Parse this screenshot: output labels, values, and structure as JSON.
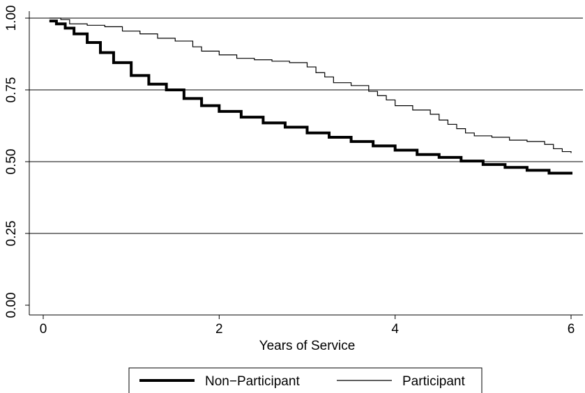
{
  "chart_data": {
    "type": "line",
    "title": "",
    "xlabel": "Years of Service",
    "ylabel": "",
    "xlim": [
      0,
      6
    ],
    "ylim": [
      0,
      1
    ],
    "x_ticks": [
      0,
      2,
      4,
      6
    ],
    "x_tick_labels": [
      "0",
      "2",
      "4",
      "6"
    ],
    "y_ticks": [
      0,
      0.25,
      0.5,
      0.75,
      1.0
    ],
    "y_tick_labels": [
      "0.00",
      "0.25",
      "0.50",
      "0.75",
      "1.00"
    ],
    "grid": "horizontal",
    "legend_position": "bottom",
    "line_style": "step",
    "series": [
      {
        "name": "Non−Participant",
        "style": "thick",
        "color": "#000000",
        "points": [
          [
            0.07,
            0.99
          ],
          [
            0.15,
            0.98
          ],
          [
            0.25,
            0.965
          ],
          [
            0.35,
            0.945
          ],
          [
            0.5,
            0.915
          ],
          [
            0.65,
            0.88
          ],
          [
            0.8,
            0.845
          ],
          [
            1.0,
            0.8
          ],
          [
            1.2,
            0.77
          ],
          [
            1.4,
            0.75
          ],
          [
            1.6,
            0.72
          ],
          [
            1.8,
            0.695
          ],
          [
            2.0,
            0.675
          ],
          [
            2.25,
            0.655
          ],
          [
            2.5,
            0.635
          ],
          [
            2.75,
            0.62
          ],
          [
            3.0,
            0.6
          ],
          [
            3.25,
            0.585
          ],
          [
            3.5,
            0.57
          ],
          [
            3.75,
            0.555
          ],
          [
            4.0,
            0.54
          ],
          [
            4.25,
            0.525
          ],
          [
            4.5,
            0.515
          ],
          [
            4.75,
            0.502
          ],
          [
            5.0,
            0.49
          ],
          [
            5.25,
            0.48
          ],
          [
            5.5,
            0.47
          ],
          [
            5.75,
            0.46
          ],
          [
            6.0,
            0.455
          ]
        ]
      },
      {
        "name": "Participant",
        "style": "thin",
        "color": "#000000",
        "points": [
          [
            0.07,
            1.0
          ],
          [
            0.2,
            0.995
          ],
          [
            0.3,
            0.98
          ],
          [
            0.5,
            0.975
          ],
          [
            0.7,
            0.97
          ],
          [
            0.9,
            0.955
          ],
          [
            1.1,
            0.945
          ],
          [
            1.3,
            0.93
          ],
          [
            1.5,
            0.92
          ],
          [
            1.7,
            0.9
          ],
          [
            1.8,
            0.885
          ],
          [
            2.0,
            0.872
          ],
          [
            2.2,
            0.86
          ],
          [
            2.4,
            0.855
          ],
          [
            2.6,
            0.85
          ],
          [
            2.8,
            0.845
          ],
          [
            3.0,
            0.83
          ],
          [
            3.1,
            0.81
          ],
          [
            3.2,
            0.795
          ],
          [
            3.3,
            0.775
          ],
          [
            3.5,
            0.765
          ],
          [
            3.7,
            0.745
          ],
          [
            3.8,
            0.73
          ],
          [
            3.9,
            0.715
          ],
          [
            4.0,
            0.695
          ],
          [
            4.2,
            0.68
          ],
          [
            4.4,
            0.665
          ],
          [
            4.5,
            0.645
          ],
          [
            4.6,
            0.63
          ],
          [
            4.7,
            0.615
          ],
          [
            4.8,
            0.6
          ],
          [
            4.9,
            0.59
          ],
          [
            5.1,
            0.585
          ],
          [
            5.3,
            0.575
          ],
          [
            5.5,
            0.57
          ],
          [
            5.7,
            0.56
          ],
          [
            5.8,
            0.545
          ],
          [
            5.9,
            0.535
          ],
          [
            6.0,
            0.53
          ]
        ]
      }
    ]
  }
}
